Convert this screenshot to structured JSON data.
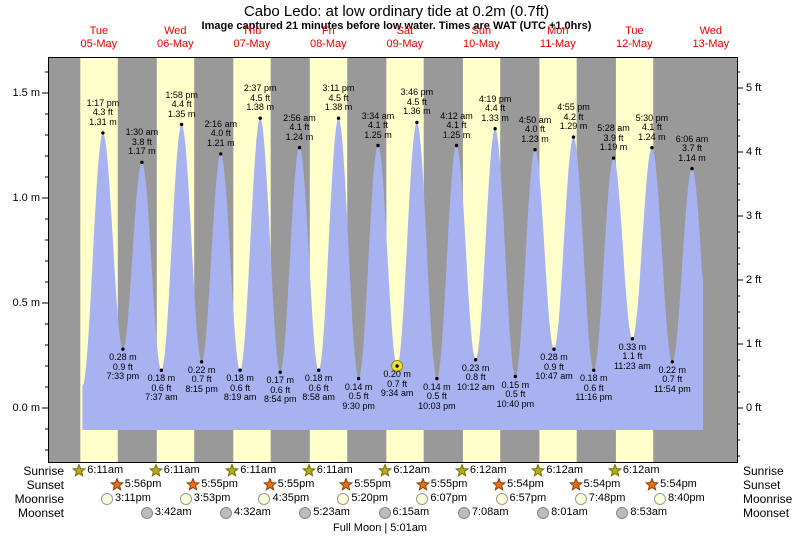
{
  "title": "Cabo Ledo: at low  ordinary tide at 0.2m (0.7ft)",
  "subtitle": "Image captured 21 minutes before low water. Times are WAT (UTC +1.0hrs)",
  "colors": {
    "night_band": "#999999",
    "day_band": "#ffffcc",
    "tide_fill": "#a8b2f0",
    "day_label_red": "#ee0000",
    "current_marker_fill": "#f0e030",
    "current_marker_stroke": "#8f8f00",
    "sunrise_star_fill": "#b3aa1f",
    "sunrise_star_stroke": "#756e00",
    "sunset_star_fill": "#e0701c",
    "sunset_star_stroke": "#933c00",
    "moonrise_fill": "#ffffd9",
    "moonrise_stroke": "#999999",
    "moonset_fill": "#bcbcb4",
    "moonset_stroke": "#8a8a8a"
  },
  "days": [
    {
      "weekday": "Tue",
      "date": "05-May"
    },
    {
      "weekday": "Wed",
      "date": "06-May"
    },
    {
      "weekday": "Thu",
      "date": "07-May"
    },
    {
      "weekday": "Fri",
      "date": "08-May"
    },
    {
      "weekday": "Sat",
      "date": "09-May"
    },
    {
      "weekday": "Sun",
      "date": "10-May"
    },
    {
      "weekday": "Mon",
      "date": "11-May"
    },
    {
      "weekday": "Tue",
      "date": "12-May"
    },
    {
      "weekday": "Wed",
      "date": "13-May"
    }
  ],
  "axes": {
    "left_major_m": [
      0.0,
      0.5,
      1.0,
      1.5
    ],
    "left_unit": "m",
    "right_major_ft": [
      0,
      1,
      2,
      3,
      4,
      5
    ],
    "right_unit": "ft"
  },
  "chart_data": {
    "type": "area",
    "title": "Cabo Ledo: at low  ordinary tide at 0.2m (0.7ft)",
    "ylabel_left": "meters",
    "ylabel_right": "feet",
    "ylim_m": [
      -0.26,
      1.67
    ],
    "legend": "none",
    "grid": false,
    "current_event_index": 15,
    "events": [
      {
        "day": 0,
        "time": "1:17 pm",
        "type": "high",
        "height_m": 1.31,
        "height_ft": "4.3"
      },
      {
        "day": 0,
        "time": "7:33 pm",
        "type": "low",
        "height_m": 0.28,
        "height_ft": "0.9"
      },
      {
        "day": 1,
        "time": "1:30 am",
        "type": "high",
        "height_m": 1.17,
        "height_ft": "3.8"
      },
      {
        "day": 1,
        "time": "7:37 am",
        "type": "low",
        "height_m": 0.18,
        "height_ft": "0.6"
      },
      {
        "day": 1,
        "time": "1:58 pm",
        "type": "high",
        "height_m": 1.35,
        "height_ft": "4.4"
      },
      {
        "day": 1,
        "time": "8:15 pm",
        "type": "low",
        "height_m": 0.22,
        "height_ft": "0.7"
      },
      {
        "day": 2,
        "time": "2:16 am",
        "type": "high",
        "height_m": 1.21,
        "height_ft": "4.0"
      },
      {
        "day": 2,
        "time": "8:19 am",
        "type": "low",
        "height_m": 0.18,
        "height_ft": "0.6"
      },
      {
        "day": 2,
        "time": "2:37 pm",
        "type": "high",
        "height_m": 1.38,
        "height_ft": "4.5"
      },
      {
        "day": 2,
        "time": "8:54 pm",
        "type": "low",
        "height_m": 0.17,
        "height_ft": "0.6"
      },
      {
        "day": 3,
        "time": "2:56 am",
        "type": "high",
        "height_m": 1.24,
        "height_ft": "4.1"
      },
      {
        "day": 3,
        "time": "8:58 am",
        "type": "low",
        "height_m": 0.18,
        "height_ft": "0.6"
      },
      {
        "day": 3,
        "time": "3:11 pm",
        "type": "high",
        "height_m": 1.38,
        "height_ft": "4.5"
      },
      {
        "day": 3,
        "time": "9:30 pm",
        "type": "low",
        "height_m": 0.14,
        "height_ft": "0.5"
      },
      {
        "day": 4,
        "time": "3:34 am",
        "type": "high",
        "height_m": 1.25,
        "height_ft": "4.1"
      },
      {
        "day": 4,
        "time": "9:34 am",
        "type": "low",
        "height_m": 0.2,
        "height_ft": "0.7"
      },
      {
        "day": 4,
        "time": "3:46 pm",
        "type": "high",
        "height_m": 1.36,
        "height_ft": "4.5"
      },
      {
        "day": 4,
        "time": "10:03 pm",
        "type": "low",
        "height_m": 0.14,
        "height_ft": "0.5"
      },
      {
        "day": 5,
        "time": "4:12 am",
        "type": "high",
        "height_m": 1.25,
        "height_ft": "4.1"
      },
      {
        "day": 5,
        "time": "10:12 am",
        "type": "low",
        "height_m": 0.23,
        "height_ft": "0.8"
      },
      {
        "day": 5,
        "time": "4:19 pm",
        "type": "high",
        "height_m": 1.33,
        "height_ft": "4.4"
      },
      {
        "day": 5,
        "time": "10:40 pm",
        "type": "low",
        "height_m": 0.15,
        "height_ft": "0.5"
      },
      {
        "day": 6,
        "time": "4:50 am",
        "type": "high",
        "height_m": 1.23,
        "height_ft": "4.0"
      },
      {
        "day": 6,
        "time": "10:47 am",
        "type": "low",
        "height_m": 0.28,
        "height_ft": "0.9"
      },
      {
        "day": 6,
        "time": "4:55 pm",
        "type": "high",
        "height_m": 1.29,
        "height_ft": "4.2"
      },
      {
        "day": 6,
        "time": "11:16 pm",
        "type": "low",
        "height_m": 0.18,
        "height_ft": "0.6"
      },
      {
        "day": 7,
        "time": "5:28 am",
        "type": "high",
        "height_m": 1.19,
        "height_ft": "3.9"
      },
      {
        "day": 7,
        "time": "11:23 am",
        "type": "low",
        "height_m": 0.33,
        "height_ft": "1.1"
      },
      {
        "day": 7,
        "time": "5:30 pm",
        "type": "high",
        "height_m": 1.24,
        "height_ft": "4.1"
      },
      {
        "day": 7,
        "time": "11:54 pm",
        "type": "low",
        "height_m": 0.22,
        "height_ft": "0.7"
      },
      {
        "day": 8,
        "time": "6:06 am",
        "type": "high",
        "height_m": 1.14,
        "height_ft": "3.7"
      }
    ]
  },
  "almanac": {
    "row_labels": [
      "Sunrise",
      "Sunset",
      "Moonrise",
      "Moonset"
    ],
    "sunrise": [
      {
        "day": 0,
        "time": "6:11am"
      },
      {
        "day": 1,
        "time": "6:11am"
      },
      {
        "day": 2,
        "time": "6:11am"
      },
      {
        "day": 3,
        "time": "6:11am"
      },
      {
        "day": 4,
        "time": "6:12am"
      },
      {
        "day": 5,
        "time": "6:12am"
      },
      {
        "day": 6,
        "time": "6:12am"
      },
      {
        "day": 7,
        "time": "6:12am"
      }
    ],
    "sunset": [
      {
        "day": 0,
        "time": "5:56pm"
      },
      {
        "day": 1,
        "time": "5:55pm"
      },
      {
        "day": 2,
        "time": "5:55pm"
      },
      {
        "day": 3,
        "time": "5:55pm"
      },
      {
        "day": 4,
        "time": "5:55pm"
      },
      {
        "day": 5,
        "time": "5:54pm"
      },
      {
        "day": 6,
        "time": "5:54pm"
      },
      {
        "day": 7,
        "time": "5:54pm"
      }
    ],
    "moonrise": [
      {
        "day": 0,
        "time": "3:11pm"
      },
      {
        "day": 1,
        "time": "3:53pm"
      },
      {
        "day": 2,
        "time": "4:35pm"
      },
      {
        "day": 3,
        "time": "5:20pm"
      },
      {
        "day": 4,
        "time": "6:07pm"
      },
      {
        "day": 5,
        "time": "6:57pm"
      },
      {
        "day": 6,
        "time": "7:48pm"
      },
      {
        "day": 7,
        "time": "8:40pm"
      }
    ],
    "moonset": [
      {
        "day": 1,
        "time": "3:42am"
      },
      {
        "day": 2,
        "time": "4:32am"
      },
      {
        "day": 3,
        "time": "5:23am"
      },
      {
        "day": 4,
        "time": "6:15am"
      },
      {
        "day": 5,
        "time": "7:08am"
      },
      {
        "day": 6,
        "time": "8:01am"
      },
      {
        "day": 7,
        "time": "8:53am"
      }
    ],
    "footer": "Full Moon | 5:01am"
  }
}
